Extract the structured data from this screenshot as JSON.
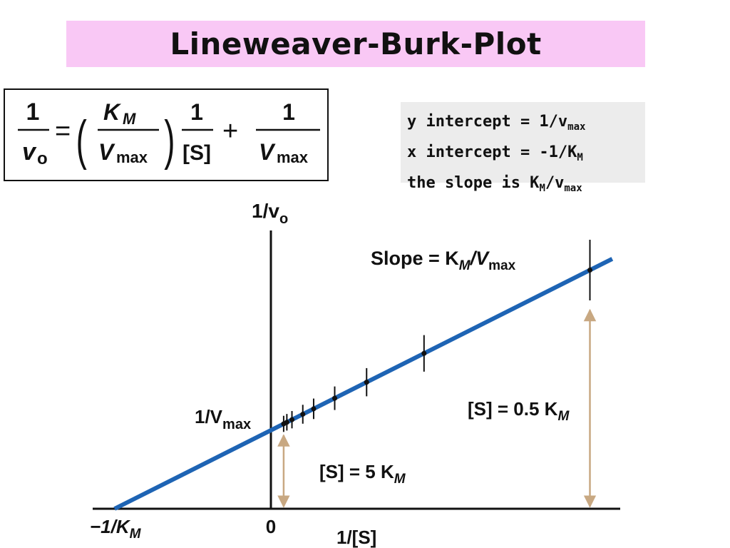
{
  "title": "Lineweaver-Burk-Plot",
  "colors": {
    "title_background": "#f9c8f5",
    "notes_background": "#ececec",
    "line": "#1e64b4",
    "arrow": "#c8a882",
    "ink": "#111111"
  },
  "equation": {
    "lhs_numerator": "1",
    "lhs_denominator": "v",
    "lhs_denominator_sub": "o",
    "equals": "=",
    "km_symbol": "K",
    "km_sub": "M",
    "vmax_symbol": "V",
    "vmax_sub": "max",
    "open_paren": "(",
    "close_paren": ")",
    "term_numerator": "1",
    "term_denominator": "[S]",
    "plus": "+",
    "last_numerator": "1",
    "last_denominator": "V",
    "last_denominator_sub": "max"
  },
  "notes": {
    "y_intercept_text": "y intercept = 1/v",
    "y_intercept_sub": "max",
    "x_intercept_text": "x intercept =  -1/K",
    "x_intercept_sub": "M",
    "slope_text": "the slope is K",
    "slope_sub_1": "M",
    "slope_mid": "/v",
    "slope_sub_2": "max"
  },
  "plot": {
    "y_axis_label": "1/v",
    "y_axis_label_sub": "o",
    "x_axis_label": "1/[S]",
    "x_origin_label": "0",
    "x_intercept_label": "−1/K",
    "x_intercept_label_sub": "M",
    "y_intercept_label": "1/V",
    "y_intercept_label_sub": "max",
    "slope_label_prefix": "Slope = K",
    "slope_label_sub_1": "M",
    "slope_label_mid": "/V",
    "slope_label_sub_2": "max",
    "annotation_low_prefix": "[S] = 5 K",
    "annotation_low_sub": "M",
    "annotation_high_prefix": "[S] = 0.5 K",
    "annotation_high_sub": "M",
    "inv_s_values": [
      0.2,
      0.25,
      0.33,
      0.5,
      0.67,
      1,
      1.5,
      2.4,
      5
    ]
  }
}
